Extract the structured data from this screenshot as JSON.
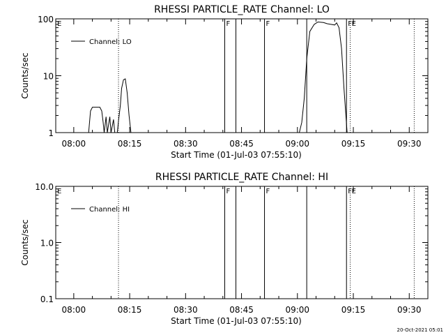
{
  "footer": {
    "timestamp": "20-Oct-2021 05:01"
  },
  "chart_data": [
    {
      "type": "line",
      "title": "RHESSI PARTICLE_RATE Channel: LO",
      "xlabel": "Start Time (01-Jul-03 07:55:10)",
      "ylabel": "Counts/sec",
      "yscale": "log",
      "ylim": [
        1,
        100
      ],
      "x_ticks": [
        "08:00",
        "08:15",
        "08:30",
        "08:45",
        "09:00",
        "09:15",
        "09:30"
      ],
      "y_ticks": [
        "1",
        "10",
        "100"
      ],
      "legend": {
        "position": "top-left",
        "entries": [
          {
            "label": "Channel: LO",
            "color": "#000000"
          }
        ]
      },
      "series": [
        {
          "name": "Channel: LO",
          "points": [
            [
              "08:04:00",
              1
            ],
            [
              "08:04:30",
              2.4
            ],
            [
              "08:05:00",
              2.8
            ],
            [
              "08:07:00",
              2.8
            ],
            [
              "08:07:30",
              2.4
            ],
            [
              "08:07:50",
              1.6
            ],
            [
              "08:08:10",
              1
            ],
            [
              "08:08:40",
              1.9
            ],
            [
              "08:09:00",
              1
            ],
            [
              "08:09:40",
              1.9
            ],
            [
              "08:10:00",
              1
            ],
            [
              "08:10:40",
              1.7
            ],
            [
              "08:11:00",
              1
            ],
            [
              "08:11:40",
              1
            ],
            [
              "08:12:00",
              1.6
            ],
            [
              "08:12:30",
              3
            ],
            [
              "08:12:50",
              6
            ],
            [
              "08:13:20",
              8.5
            ],
            [
              "08:13:50",
              8.8
            ],
            [
              "08:14:20",
              5
            ],
            [
              "08:14:50",
              2
            ],
            [
              "08:15:20",
              1
            ],
            [
              "09:00:30",
              1
            ],
            [
              "09:01:10",
              1.5
            ],
            [
              "09:01:50",
              4
            ],
            [
              "09:02:30",
              20
            ],
            [
              "09:03:20",
              60
            ],
            [
              "09:04:30",
              80
            ],
            [
              "09:05:30",
              88
            ],
            [
              "09:07:00",
              86
            ],
            [
              "09:08:00",
              82
            ],
            [
              "09:09:00",
              80
            ],
            [
              "09:10:00",
              78
            ],
            [
              "09:10:30",
              85
            ],
            [
              "09:11:10",
              70
            ],
            [
              "09:11:50",
              30
            ],
            [
              "09:12:30",
              6
            ],
            [
              "09:13:20",
              1
            ]
          ]
        }
      ],
      "markers": [
        {
          "time": "07:55:10",
          "style": "dotted",
          "label": "E"
        },
        {
          "time": "08:12:00",
          "style": "dotted",
          "label": ""
        },
        {
          "time": "08:40:30",
          "style": "solid",
          "label": "F"
        },
        {
          "time": "08:43:30",
          "style": "solid",
          "label": ""
        },
        {
          "time": "08:51:10",
          "style": "solid",
          "label": "F"
        },
        {
          "time": "09:02:30",
          "style": "solid",
          "label": ""
        },
        {
          "time": "09:13:10",
          "style": "solid",
          "label": "F"
        },
        {
          "time": "09:14:10",
          "style": "dotted",
          "label": "E"
        },
        {
          "time": "09:31:20",
          "style": "dotted",
          "label": ""
        }
      ]
    },
    {
      "type": "line",
      "title": "RHESSI PARTICLE_RATE Channel: HI",
      "xlabel": "Start Time (01-Jul-03 07:55:10)",
      "ylabel": "Counts/sec",
      "yscale": "log",
      "ylim": [
        0.1,
        10
      ],
      "x_ticks": [
        "08:00",
        "08:15",
        "08:30",
        "08:45",
        "09:00",
        "09:15",
        "09:30"
      ],
      "y_ticks": [
        "0.1",
        "1.0",
        "10.0"
      ],
      "legend": {
        "position": "top-left",
        "entries": [
          {
            "label": "Channel: HI",
            "color": "#000000"
          }
        ]
      },
      "series": [
        {
          "name": "Channel: HI",
          "points": []
        }
      ],
      "markers": [
        {
          "time": "07:55:10",
          "style": "dotted",
          "label": "E"
        },
        {
          "time": "08:12:00",
          "style": "dotted",
          "label": ""
        },
        {
          "time": "08:40:30",
          "style": "solid",
          "label": "F"
        },
        {
          "time": "08:43:30",
          "style": "solid",
          "label": ""
        },
        {
          "time": "08:51:10",
          "style": "solid",
          "label": "F"
        },
        {
          "time": "09:02:30",
          "style": "solid",
          "label": ""
        },
        {
          "time": "09:13:10",
          "style": "solid",
          "label": "F"
        },
        {
          "time": "09:14:10",
          "style": "dotted",
          "label": "E"
        },
        {
          "time": "09:31:20",
          "style": "dotted",
          "label": ""
        }
      ]
    }
  ]
}
